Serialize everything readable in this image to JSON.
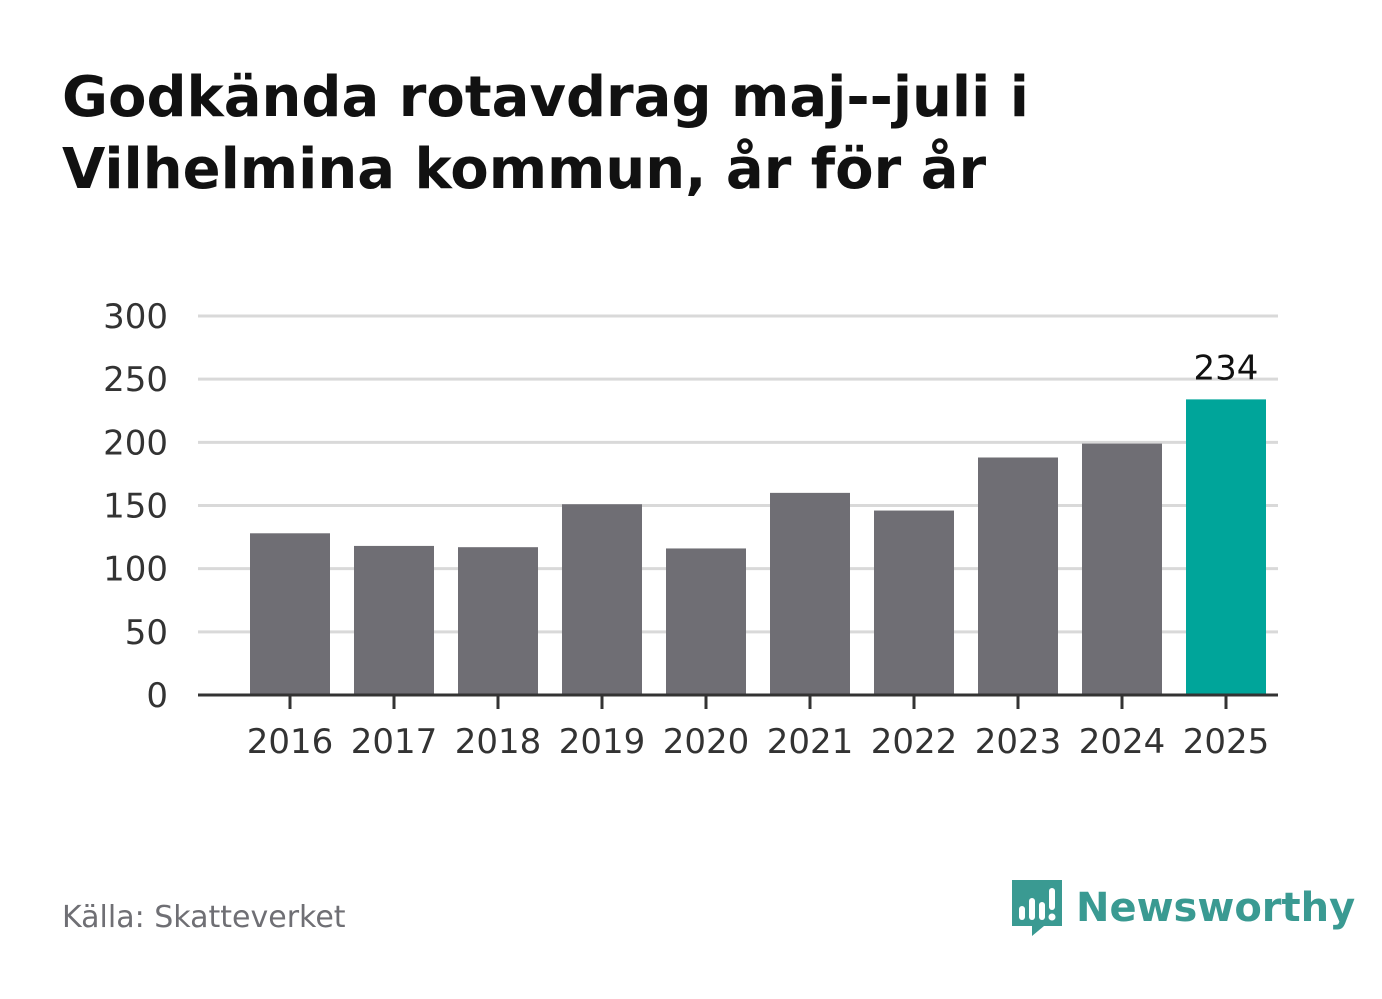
{
  "title": "Godkända rotavdrag maj--juli i Vilhelmina kommun, år för år",
  "source": "Källa: Skatteverket",
  "brand": {
    "name": "Newsworthy",
    "icon": "newsworthy-logo-icon"
  },
  "colors": {
    "bar": "#6f6e74",
    "highlight": "#00a59a",
    "grid": "#d9d9d9",
    "axis": "#333333",
    "brand": "#3a9a92"
  },
  "chart_data": {
    "type": "bar",
    "title": "Godkända rotavdrag maj--juli i Vilhelmina kommun, år för år",
    "xlabel": "",
    "ylabel": "",
    "categories": [
      "2016",
      "2017",
      "2018",
      "2019",
      "2020",
      "2021",
      "2022",
      "2023",
      "2024",
      "2025"
    ],
    "values": [
      128,
      118,
      117,
      151,
      116,
      160,
      146,
      188,
      199,
      234
    ],
    "ylim": [
      0,
      300
    ],
    "yticks": [
      0,
      50,
      100,
      150,
      200,
      250,
      300
    ],
    "highlight_index": 9,
    "data_labels": [
      {
        "index": 9,
        "text": "234"
      }
    ],
    "grid": true,
    "legend": "none"
  }
}
